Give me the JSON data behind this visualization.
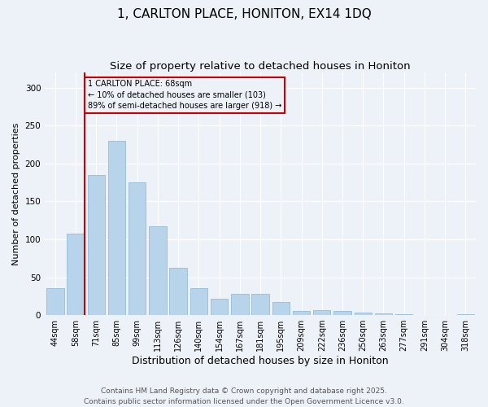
{
  "title": "1, CARLTON PLACE, HONITON, EX14 1DQ",
  "subtitle": "Size of property relative to detached houses in Honiton",
  "xlabel": "Distribution of detached houses by size in Honiton",
  "ylabel": "Number of detached properties",
  "categories": [
    "44sqm",
    "58sqm",
    "71sqm",
    "85sqm",
    "99sqm",
    "113sqm",
    "126sqm",
    "140sqm",
    "154sqm",
    "167sqm",
    "181sqm",
    "195sqm",
    "209sqm",
    "222sqm",
    "236sqm",
    "250sqm",
    "263sqm",
    "277sqm",
    "291sqm",
    "304sqm",
    "318sqm"
  ],
  "values": [
    35,
    108,
    185,
    230,
    175,
    117,
    62,
    36,
    22,
    28,
    28,
    17,
    5,
    7,
    5,
    3,
    2,
    1,
    0,
    0,
    1
  ],
  "bar_color": "#b8d4ea",
  "bar_edge_color": "#8ab4d4",
  "vline_color": "#cc0000",
  "annotation_text": "1 CARLTON PLACE: 68sqm\n← 10% of detached houses are smaller (103)\n89% of semi-detached houses are larger (918) →",
  "annotation_box_edgecolor": "#cc0000",
  "ylim": [
    0,
    320
  ],
  "yticks": [
    0,
    50,
    100,
    150,
    200,
    250,
    300
  ],
  "background_color": "#edf1f8",
  "grid_color": "#ffffff",
  "footer": "Contains HM Land Registry data © Crown copyright and database right 2025.\nContains public sector information licensed under the Open Government Licence v3.0.",
  "title_fontsize": 11,
  "subtitle_fontsize": 9.5,
  "xlabel_fontsize": 9,
  "ylabel_fontsize": 8,
  "footer_fontsize": 6.5,
  "tick_fontsize": 7,
  "annotation_fontsize": 7,
  "vline_index": 1.43
}
